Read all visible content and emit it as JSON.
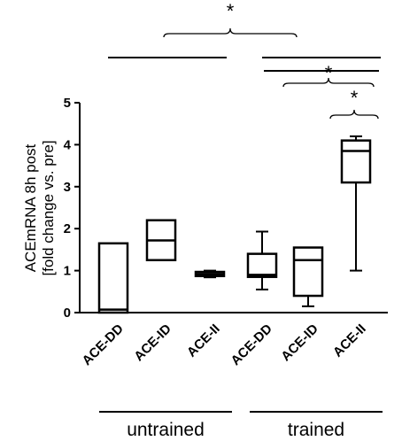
{
  "chart_data": {
    "type": "box",
    "title": "",
    "xlabel": "",
    "ylabel_lines": [
      "ACEmRNA 8h post",
      "[fold change vs. pre]"
    ],
    "ylim": [
      0,
      5
    ],
    "yticks": [
      0,
      1,
      2,
      3,
      4,
      5
    ],
    "categories": [
      "ACE-DD",
      "ACE-ID",
      "ACE-II",
      "ACE-DD",
      "ACE-ID",
      "ACE-II"
    ],
    "boxes": [
      {
        "category": "ACE-DD",
        "group": "untrained",
        "min": 0.0,
        "q1": 0.0,
        "median": 0.07,
        "q3": 1.65,
        "max": 1.65
      },
      {
        "category": "ACE-ID",
        "group": "untrained",
        "min": 1.25,
        "q1": 1.25,
        "median": 1.72,
        "q3": 2.2,
        "max": 2.2
      },
      {
        "category": "ACE-II",
        "group": "untrained",
        "min": 0.84,
        "q1": 0.87,
        "median": 0.92,
        "q3": 0.97,
        "max": 1.0
      },
      {
        "category": "ACE-DD",
        "group": "trained",
        "min": 0.55,
        "q1": 0.85,
        "median": 0.9,
        "q3": 1.4,
        "max": 1.93
      },
      {
        "category": "ACE-ID",
        "group": "trained",
        "min": 0.15,
        "q1": 0.4,
        "median": 1.25,
        "q3": 1.55,
        "max": 1.55
      },
      {
        "category": "ACE-II",
        "group": "trained",
        "min": 1.0,
        "q1": 3.1,
        "median": 3.85,
        "q3": 4.1,
        "max": 4.2
      }
    ],
    "groups": [
      {
        "label": "untrained",
        "categories": [
          0,
          1,
          2
        ]
      },
      {
        "label": "trained",
        "categories": [
          3,
          4,
          5
        ]
      }
    ],
    "significance": [
      {
        "symbol": "*",
        "from": "untrained",
        "to": "trained"
      },
      {
        "symbol": "*",
        "from": [
          3,
          4
        ],
        "to": 5
      },
      {
        "symbol": "*",
        "from": 4,
        "to": 5
      }
    ]
  }
}
